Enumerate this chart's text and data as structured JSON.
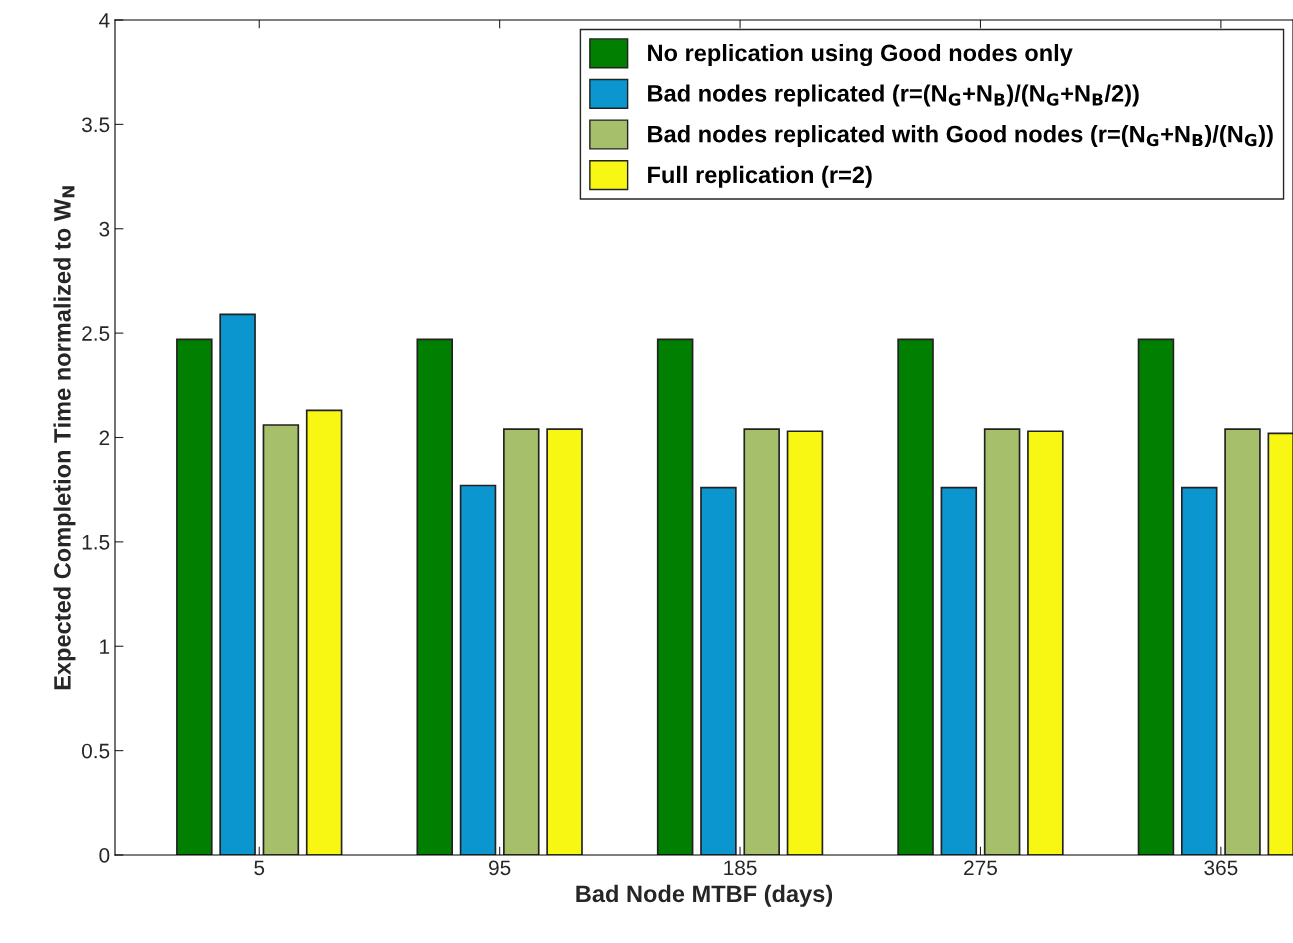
{
  "chart_data": {
    "type": "bar",
    "xlabel": "Bad Node MTBF (days)",
    "ylabel": "Expected Completion Time normalized to W$_{N}$",
    "categories": [
      "5",
      "95",
      "185",
      "275",
      "365"
    ],
    "series": [
      {
        "name": "No replication using Good nodes only",
        "color": "#007f00",
        "values": [
          2.47,
          2.47,
          2.47,
          2.47,
          2.47
        ]
      },
      {
        "name": "Bad nodes replicated (r=(N$_{G}$+N$_{B}$)/(N$_{G}$+N$_{B}$/2))",
        "color": "#0c96cf",
        "values": [
          2.59,
          1.77,
          1.76,
          1.76,
          1.76
        ]
      },
      {
        "name": "Bad nodes replicated with Good nodes (r=(N$_{G}$+N$_{B}$)/(N$_{G}$))",
        "color": "#a5bf6b",
        "values": [
          2.06,
          2.04,
          2.04,
          2.04,
          2.04
        ]
      },
      {
        "name": "Full replication (r=2)",
        "color": "#f7f713",
        "values": [
          2.13,
          2.04,
          2.03,
          2.03,
          2.02
        ]
      }
    ],
    "ylim": [
      0,
      4
    ],
    "yticks": [
      0,
      0.5,
      1,
      1.5,
      2,
      2.5,
      3,
      3.5,
      4
    ],
    "grid": false,
    "legend": "top right"
  }
}
